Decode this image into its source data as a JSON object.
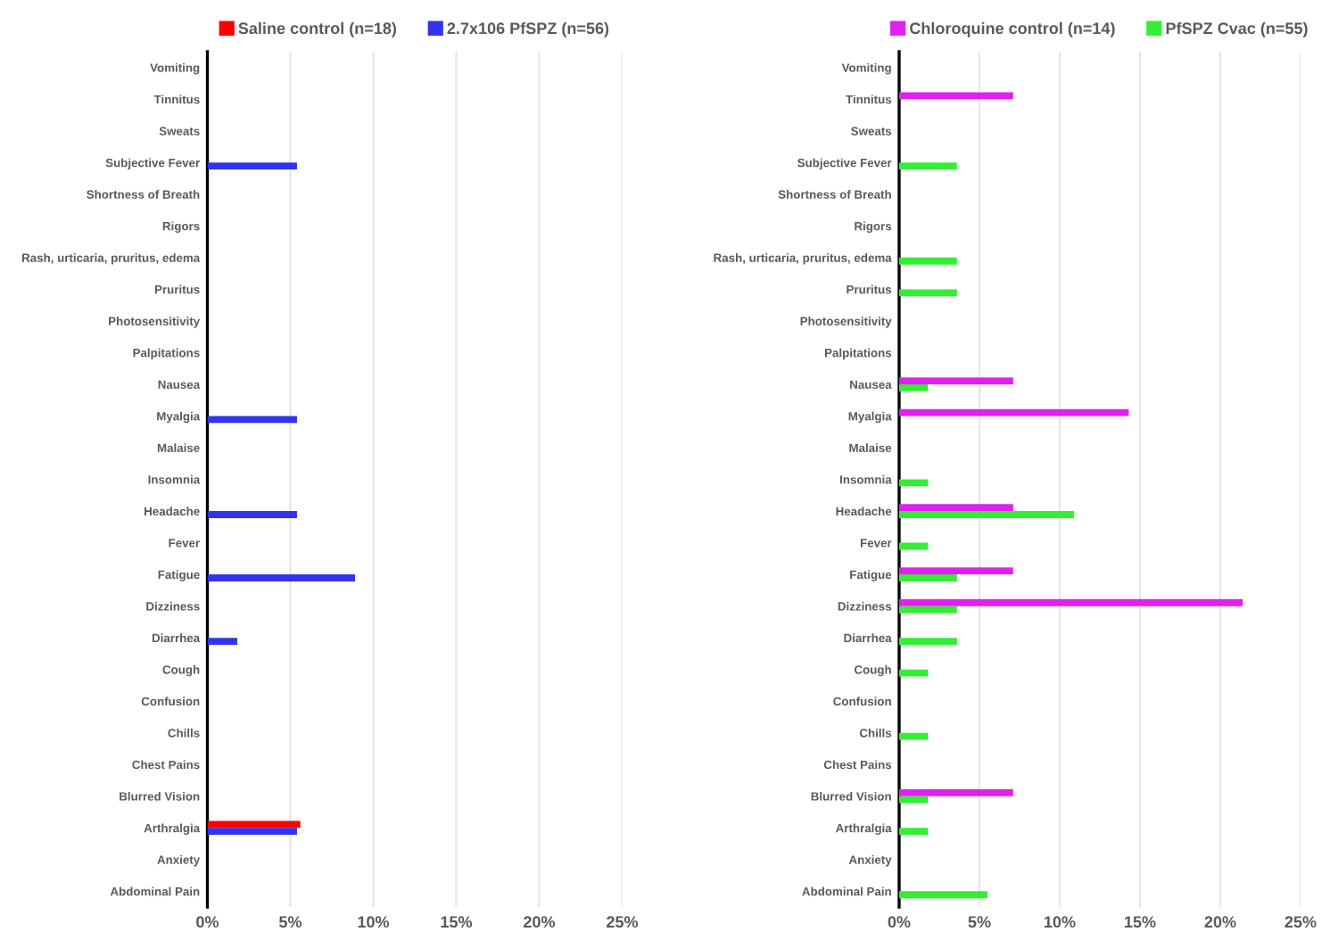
{
  "chart_data": [
    {
      "type": "bar",
      "orientation": "horizontal",
      "legend": "top",
      "grid": "x",
      "categories": [
        "Vomiting",
        "Tinnitus",
        "Sweats",
        "Subjective Fever",
        "Shortness of Breath",
        "Rigors",
        "Rash, urticaria, pruritus, edema",
        "Pruritus",
        "Photosensitivity",
        "Palpitations",
        "Nausea",
        "Myalgia",
        "Malaise",
        "Insomnia",
        "Headache",
        "Fever",
        "Fatigue",
        "Dizziness",
        "Diarrhea",
        "Cough",
        "Confusion",
        "Chills",
        "Chest Pains",
        "Blurred Vision",
        "Arthralgia",
        "Anxiety",
        "Abdominal Pain"
      ],
      "series": [
        {
          "name": "Saline control (n=18)",
          "color": "#ff0000",
          "values": [
            0,
            0,
            0,
            0,
            0,
            0,
            0,
            0,
            0,
            0,
            0,
            0,
            0,
            0,
            0,
            0,
            0,
            0,
            0,
            0,
            0,
            0,
            0,
            0,
            5.6,
            0,
            0
          ]
        },
        {
          "name": "2.7x106 PfSPZ (n=56)",
          "color": "#3333ee",
          "values": [
            0,
            0,
            0,
            5.4,
            0,
            0,
            0,
            0,
            0,
            0,
            0,
            5.4,
            0,
            0,
            5.4,
            0,
            8.9,
            0,
            1.8,
            0,
            0,
            0,
            0,
            0,
            5.4,
            0,
            0
          ]
        }
      ],
      "xlim": [
        0,
        25
      ],
      "xticks": [
        {
          "value": 0,
          "label": "0%"
        },
        {
          "value": 5,
          "label": "5%"
        },
        {
          "value": 10,
          "label": "10%"
        },
        {
          "value": 15,
          "label": "15%"
        },
        {
          "value": 20,
          "label": "20%"
        },
        {
          "value": 25,
          "label": "25%"
        }
      ]
    },
    {
      "type": "bar",
      "orientation": "horizontal",
      "legend": "top",
      "grid": "x",
      "categories": [
        "Vomiting",
        "Tinnitus",
        "Sweats",
        "Subjective Fever",
        "Shortness of Breath",
        "Rigors",
        "Rash, urticaria, pruritus, edema",
        "Pruritus",
        "Photosensitivity",
        "Palpitations",
        "Nausea",
        "Myalgia",
        "Malaise",
        "Insomnia",
        "Headache",
        "Fever",
        "Fatigue",
        "Dizziness",
        "Diarrhea",
        "Cough",
        "Confusion",
        "Chills",
        "Chest Pains",
        "Blurred Vision",
        "Arthralgia",
        "Anxiety",
        "Abdominal Pain"
      ],
      "series": [
        {
          "name": "Chloroquine control (n=14)",
          "color": "#e020f0",
          "values": [
            0,
            7.1,
            0,
            0,
            0,
            0,
            0,
            0,
            0,
            0,
            7.1,
            14.3,
            0,
            0,
            7.1,
            0,
            7.1,
            21.4,
            0,
            0,
            0,
            0,
            0,
            7.1,
            0,
            0,
            0
          ]
        },
        {
          "name": "PfSPZ Cvac (n=55)",
          "color": "#33ee33",
          "values": [
            0,
            0,
            0,
            3.6,
            0,
            0,
            3.6,
            3.6,
            0,
            0,
            1.8,
            0,
            0,
            1.8,
            10.9,
            1.8,
            3.6,
            3.6,
            3.6,
            1.8,
            0,
            1.8,
            0,
            1.8,
            1.8,
            0,
            5.5
          ]
        }
      ],
      "xlim": [
        0,
        25
      ],
      "xticks": [
        {
          "value": 0,
          "label": "0%"
        },
        {
          "value": 5,
          "label": "5%"
        },
        {
          "value": 10,
          "label": "10%"
        },
        {
          "value": 15,
          "label": "15%"
        },
        {
          "value": 20,
          "label": "20%"
        },
        {
          "value": 25,
          "label": "25%"
        }
      ]
    }
  ]
}
